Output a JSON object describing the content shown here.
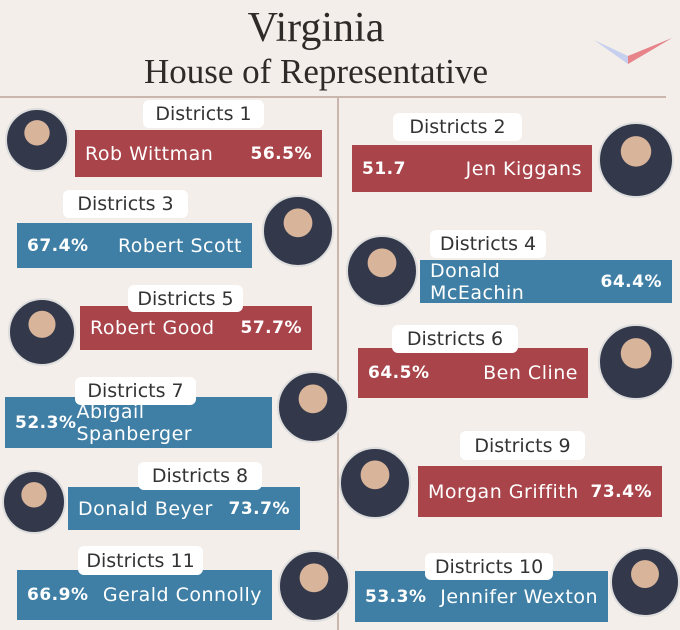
{
  "header": {
    "title": "Virginia",
    "subtitle": "House of Representative"
  },
  "cards": [
    {
      "label": "Districts 1",
      "name": "Rob Wittman",
      "percent": "56.5%"
    },
    {
      "label": "Districts 2",
      "name": "Jen Kiggans",
      "percent": "51.7"
    },
    {
      "label": "Districts 3",
      "name": "Robert Scott",
      "percent": "67.4%"
    },
    {
      "label": "Districts 4",
      "name": "Donald  McEachin",
      "percent": "64.4%"
    },
    {
      "label": "Districts 5",
      "name": "Robert Good",
      "percent": "57.7%"
    },
    {
      "label": "Districts 6",
      "name": "Ben Cline",
      "percent": "64.5%"
    },
    {
      "label": "Districts 7",
      "name": "Abigail Spanberger",
      "percent": "52.3%"
    },
    {
      "label": "Districts 8",
      "name": "Donald Beyer",
      "percent": "73.7%"
    },
    {
      "label": "Districts 9",
      "name": "Morgan Griffith",
      "percent": "73.4%"
    },
    {
      "label": "Districts 10",
      "name": "Jennifer Wexton",
      "percent": "53.3%"
    },
    {
      "label": "Districts 11",
      "name": "Gerald Connolly",
      "percent": "66.9%"
    }
  ]
}
